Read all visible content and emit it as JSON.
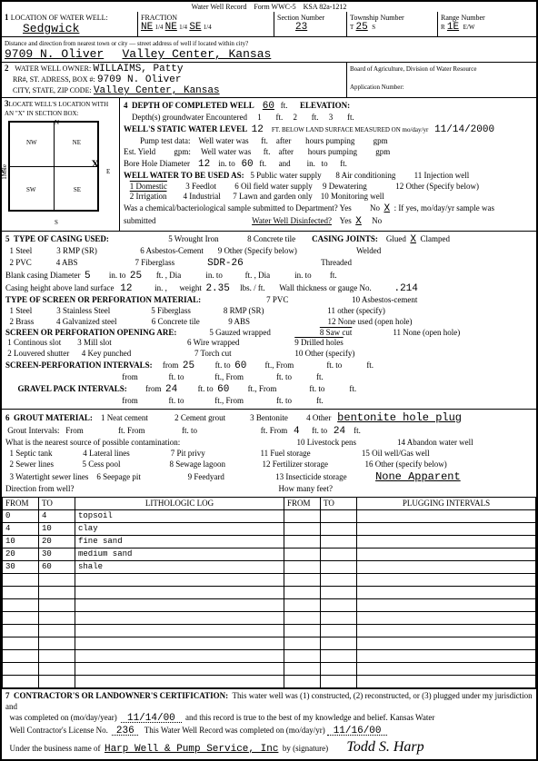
{
  "header": {
    "title": "Water Well Record",
    "form": "Form WWC-5",
    "ksa": "KSA 82a-1212"
  },
  "sec1": {
    "county_label": "LOCATION OF WATER WELL:",
    "county": "Sedgwick",
    "fraction_label": "FRACTION",
    "f1": "NE",
    "f1q": "1/4",
    "f2": "NE",
    "f2q": "1/4",
    "f3": "SE",
    "f3q": "1/4",
    "section_label": "Section Number",
    "section": "23",
    "township_label": "Township Number",
    "township": "25",
    "ts": "S",
    "range_label": "Range Number",
    "range": "1E",
    "re": "E/W",
    "dist_label": "Distance and direction from nearest town or city — street address of well if located within city?",
    "addr": "9709 N. Oliver",
    "city": "Valley Center, Kansas"
  },
  "sec2": {
    "owner_label": "WATER WELL OWNER:",
    "owner": "WILLAIMS, Patty",
    "addr_label": "RR#, ST. ADRESS, BOX #:",
    "addr": "9709 N. Oliver",
    "csz_label": "CITY, STATE, ZIP CODE:",
    "csz": "Valley Center, Kansas",
    "agency": "Board of Agriculture, Division of Water Resource",
    "appnum": "Application Number:"
  },
  "sec3": {
    "label": "LOCATE WELL'S LOCATION WITH AN \"X\" IN SECTION BOX:",
    "n": "N",
    "s": "S",
    "e": "E",
    "w": "W",
    "nw": "NW",
    "ne": "NE",
    "sw": "SW",
    "se": "SE",
    "mile": "1Mile"
  },
  "sec4": {
    "title": "DEPTH OF COMPLETED WELL",
    "depth": "60",
    "ft": "ft.",
    "elev": "ELEVATION:",
    "depths_enc": "Depth(s) groundwater Encountered",
    "d1": "1",
    "d2": "2",
    "d3": "3",
    "swl_label": "WELL'S STATIC WATER LEVEL",
    "swl": "12",
    "swl_below": "FT. BELOW  LAND  SURFACE  MEASURED  ON  mo/day/yr",
    "swl_date": "11/14/2000",
    "pump_label": "Pump test data:",
    "ww1": "Well  water  was",
    "after": "after",
    "hp": "hours  pumping",
    "gpm": "gpm",
    "est": "Est.  Yield",
    "gpml": "gpm:",
    "bhd": "Bore Hole Diameter",
    "bhd1": "12",
    "into": "in.   to",
    "bhd2": "60",
    "and": "and",
    "use_label": "WELL WATER TO BE USED AS:",
    "u1": "1 Domestic",
    "u2": "2 Irrigation",
    "u3": "3 Feedlot",
    "u4": "4 Industrial",
    "u5": "5 Public water supply",
    "u6": "6 Oil field water supply",
    "u7": "7 Lawn and garden only",
    "u8": "8 Air conditioning",
    "u9": "9 Dewatering",
    "u10": "10 Monitoring well",
    "u11": "11 Injection well",
    "u12": "12 Other (Specify below)",
    "chem": "Was a chemical/bacteriological sample submitted to Department?  Yes",
    "no": "No",
    "x": "X",
    "ifyes": ": If yes, mo/day/yr sample was",
    "sub": "submitted",
    "wwd": "Water Well Disinfected?",
    "yes": "Yes"
  },
  "sec5": {
    "title": "TYPE OF CASING USED:",
    "c1": "1 Steel",
    "c2": "2 PVC",
    "c3": "3 RMP (SR)",
    "c4": "4 ABS",
    "c5": "5 Wrought Iron",
    "c6": "6 Asbestos-Cement",
    "c7": "7 Fiberglass",
    "c8": "8 Concrete tile",
    "c9": "9 Other (Specify below)",
    "sdr": "SDR-26",
    "cj": "CASING JOINTS:",
    "cjg": "Glued",
    "cjx": "X",
    "cjc": "Clamped",
    "cjw": "Welded",
    "cjt": "Threaded",
    "bcd": "Blank casing Diameter",
    "bcd1": "5",
    "bcdto": "in.   to",
    "bcd2": "25",
    "ftdia": "ft. ,    Dia",
    "bcdin": "in.    to",
    "ftdia2": "ft. ,    Dia",
    "bcdin2": "in.    to",
    "ftend": "ft.",
    "cha": "Casing height above land surface",
    "cha1": "12",
    "chain": "in. ,",
    "wt": "weight",
    "wtv": "2.35",
    "lbs": "lbs. / ft.",
    "wtg": "Wall thickness or gauge No.",
    "wtgv": ".214",
    "tsp": "TYPE OF SCREEN OR PERFORATION MATERIAL:",
    "pvc7": "7 PVC",
    "s1": "1 Steel",
    "s2": "2 Brass",
    "s3": "3 Stainless Steel",
    "s4": "4 Galvanized steel",
    "s5": "5 Fiberglass",
    "s6": "6 Concrete tile",
    "s8": "8 RMP (SR)",
    "s9": "9 ABS",
    "s10": "10 Asbestos-cement",
    "s11": "11 other (specify)",
    "s12": "12 None used (open hole)",
    "spo": "SCREEN OR PERFORATION OPENING ARE:",
    "o1": "1 Continous slot",
    "o2": "2 Louvered shutter",
    "o3": "3 Mill slot",
    "o4": "4 Key punched",
    "o5": "5 Gauzed wrapped",
    "o6": "6 Wire wrapped",
    "o7": "7 Torch cut",
    "o8": "8 Saw cut",
    "o9": "9 Drilled holes",
    "o10": "10 Other  (specify)",
    "o11": "11 None (open hole)",
    "spi": "SCREEN-PERFORATION  INTERVALS:",
    "from": "from",
    "to": "ft.  to",
    "ftfrom": "ft., From",
    "ftto": "ft.   to",
    "spi_f1": "25",
    "spi_t1": "60",
    "gpi": "GRAVEL  PACK  INTERVALS:",
    "gpi_f1": "24",
    "gpi_t1": "60"
  },
  "sec6": {
    "title": "GROUT MATERIAL:",
    "g1": "1 Neat cement",
    "g2": "2 Cement grout",
    "g3": "3 Bentonite",
    "g4": "4 Other",
    "g4v": "bentonite hole plug",
    "gi": "Grout Intervals:",
    "gifrom": "From",
    "gift": "ft.  From",
    "gito": "ft.   to",
    "giv1": "4",
    "giv2": "24",
    "ftend": "ft.",
    "near": "What is the nearest source of possible contamination:",
    "n1": "1 Septic tank",
    "n2": "2 Sewer lines",
    "n3": "3 Watertight sewer lines",
    "n4": "4 Lateral lines",
    "n5": "5 Cess pool",
    "n6": "6 Seepage pit",
    "n7": "7 Pit privy",
    "n8": "8 Sewage lagoon",
    "n9": "9 Feedyard",
    "n10": "10 Livestock pens",
    "n11": "11 Fuel storage",
    "n12": "12 Fertilizer storage",
    "n13": "13 Insecticide storage",
    "n14": "14 Abandon water well",
    "n15": "15 Oil well/Gas well",
    "n16": "16 Other  (specify below)",
    "n16v": "None Apparent",
    "dir": "Direction from well?",
    "hmf": "How many feet?",
    "th_from": "FROM",
    "th_to": "TO",
    "th_log": "LITHOLOGIC LOG",
    "th_plug": "PLUGGING  INTERVALS",
    "rows": [
      {
        "f": "0",
        "t": "4",
        "d": "topsoil"
      },
      {
        "f": "4",
        "t": "10",
        "d": "clay"
      },
      {
        "f": "10",
        "t": "20",
        "d": "fine sand"
      },
      {
        "f": "20",
        "t": "30",
        "d": "medium sand"
      },
      {
        "f": "30",
        "t": "60",
        "d": "shale"
      }
    ]
  },
  "sec7": {
    "title": "CONTRACTOR'S OR LANDOWNER'S CERTIFICATION:",
    "text1": "This water well was (1) constructed, (2) reconstructed, or (3) plugged under my jurisdiction and",
    "text2": "was completed on (mo/day/year)",
    "d1": "11/14/00",
    "text3": "and this record is true to the best of my knowledge and belief.  Kansas Water",
    "text4": "Well Contractor's License No.",
    "lic": "236",
    "text5": "This Water Well Record was completed on (mo/day/yr)",
    "d2": "11/16/00",
    "text6": "Under the business name of",
    "biz": "Harp Well & Pump Service, Inc",
    "text7": "by (signature)",
    "sig": "Todd  S.  Harp"
  }
}
